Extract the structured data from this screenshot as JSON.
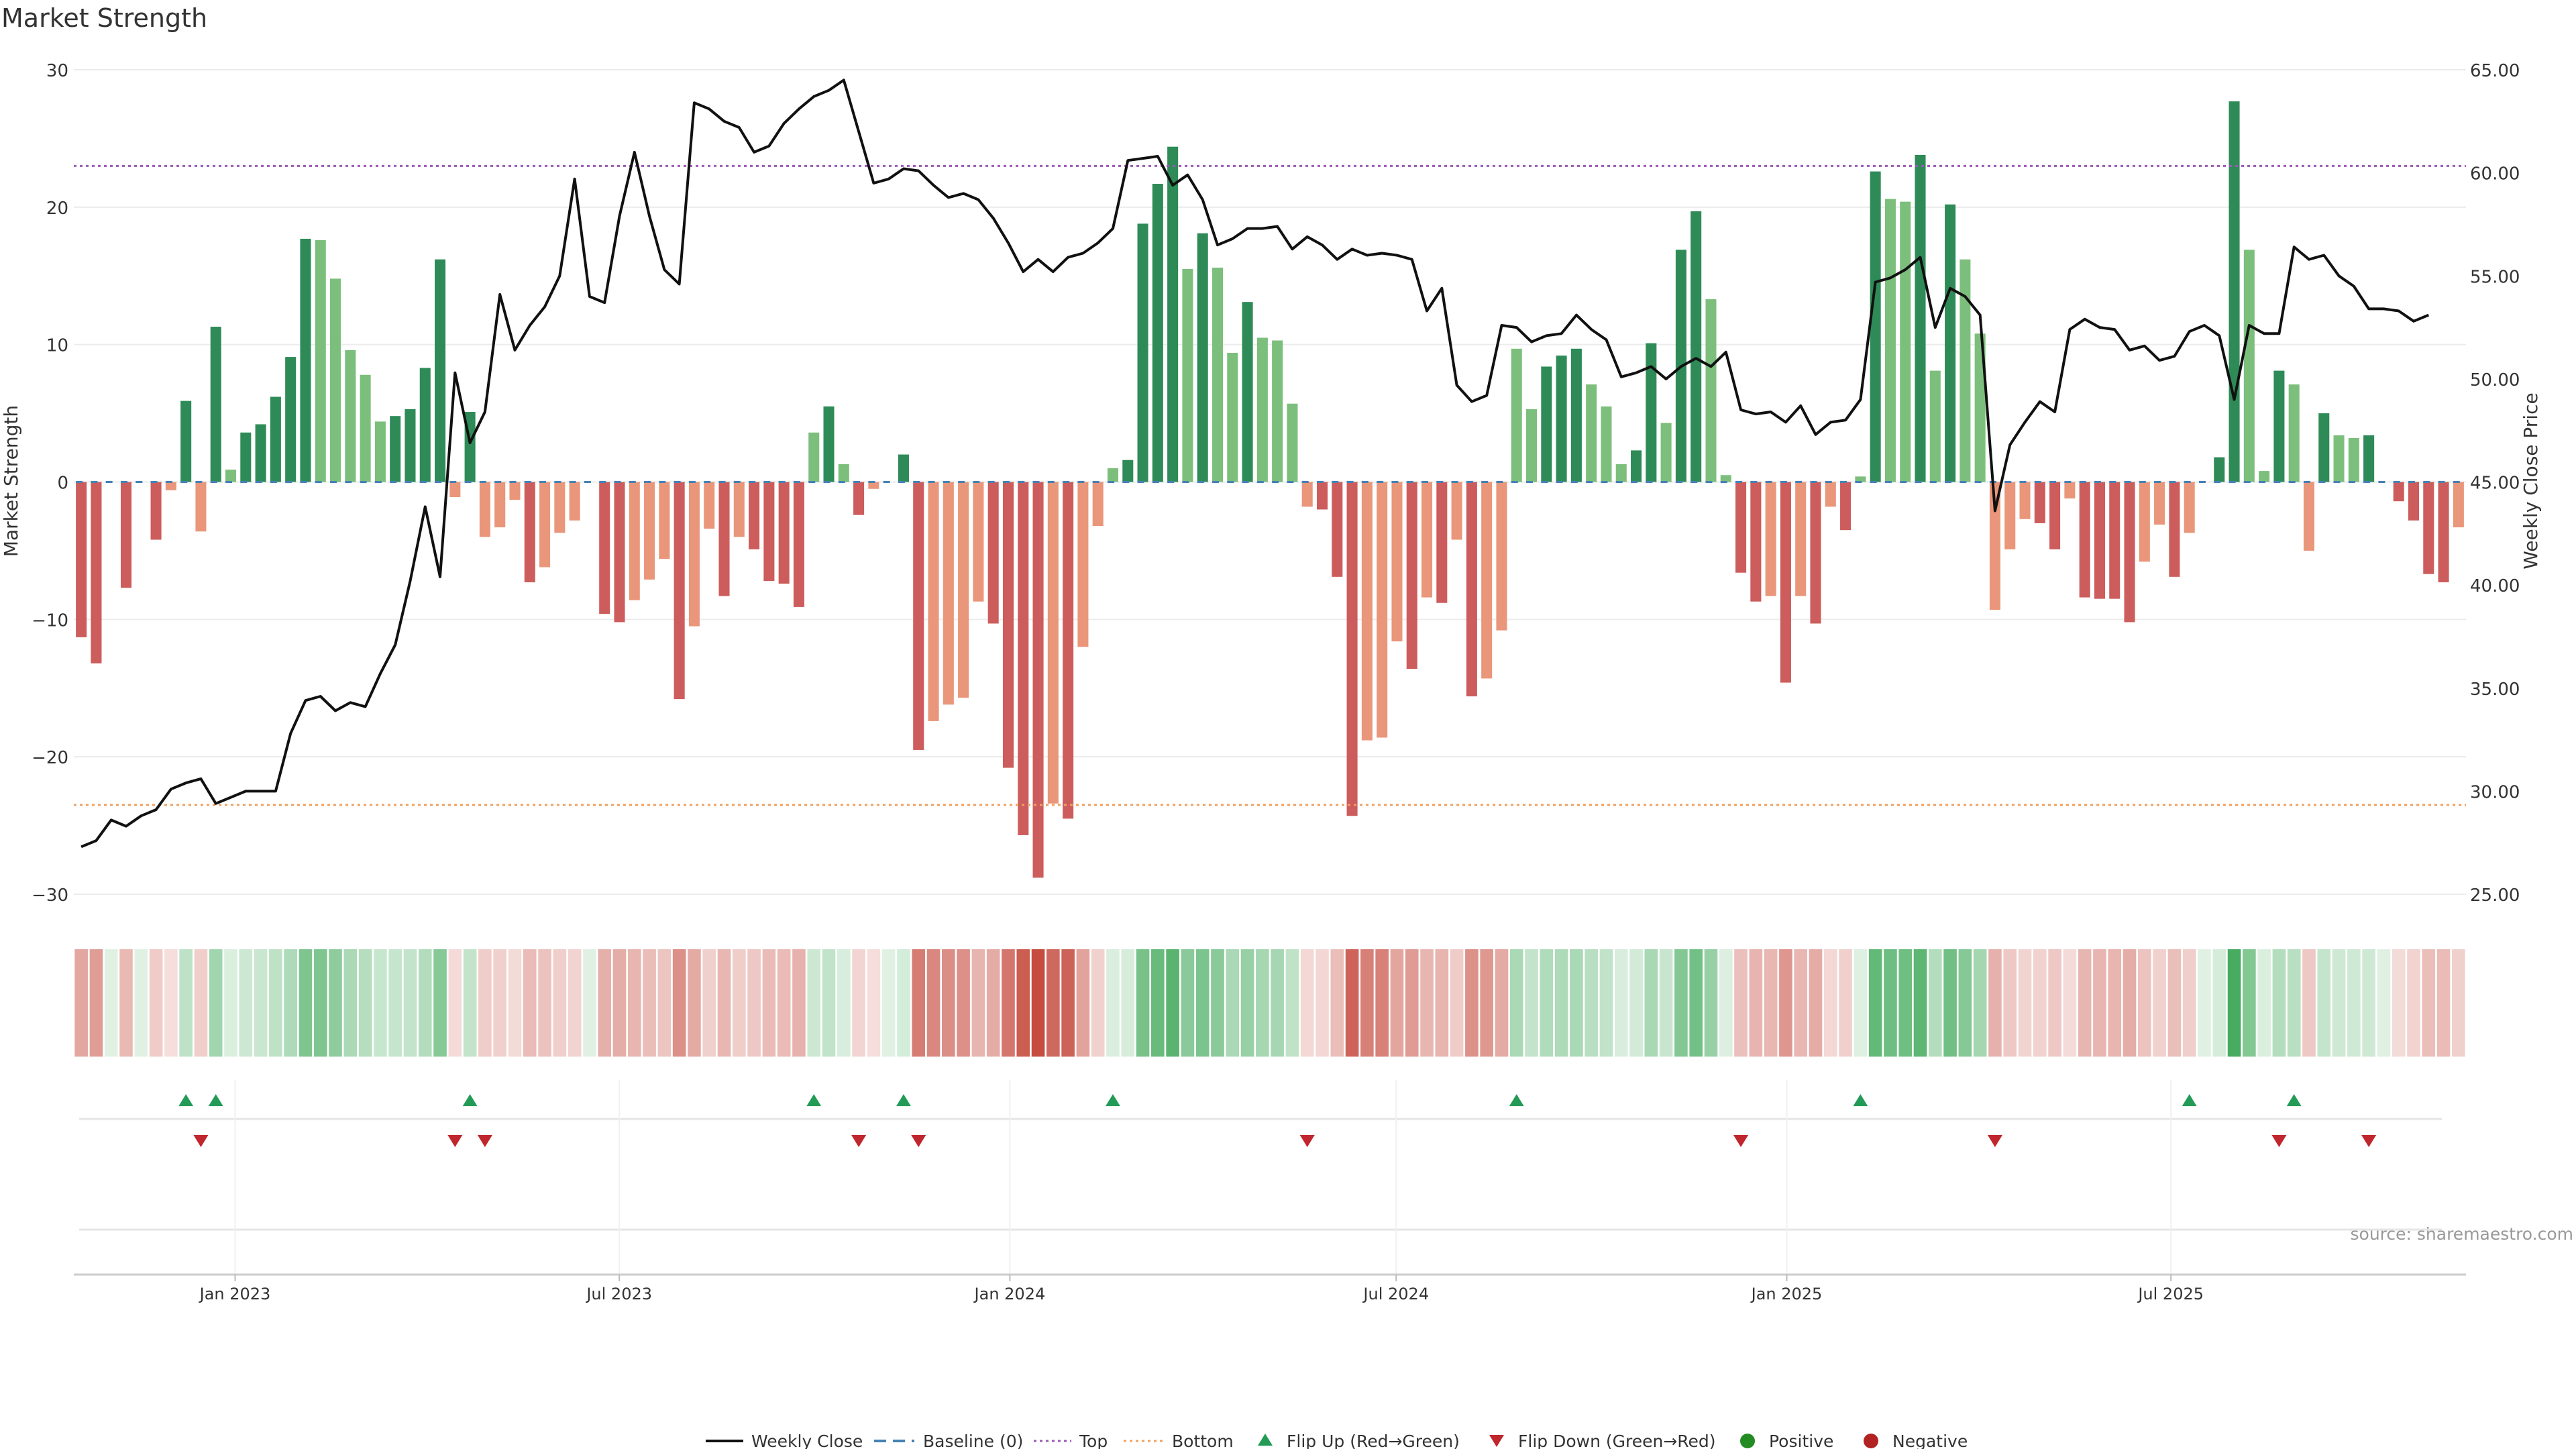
{
  "title": "Market Strength",
  "source": "source: sharemaestro.com",
  "colors": {
    "strong_green": "#2e8b57",
    "light_green": "#7cbf7c",
    "strong_red": "#cd5c5c",
    "light_red": "#e9967a",
    "line": "#111111",
    "baseline": "#4682b4",
    "top": "#9b59b6",
    "bottom": "#f0a060",
    "flip_up": "#239b56",
    "flip_down": "#c0262d",
    "positive": "#228b22",
    "negative": "#b22222"
  },
  "chart_data": {
    "type": "bar",
    "title": "Market Strength",
    "ylabel": "Market Strength",
    "y2label": "Weekly Close Price",
    "ylim": [
      -30,
      30
    ],
    "y2lim": [
      25,
      65
    ],
    "yticks": [
      -30,
      -20,
      -10,
      0,
      10,
      20,
      30
    ],
    "y2ticks": [
      "25.00",
      "30.00",
      "35.00",
      "40.00",
      "45.00",
      "50.00",
      "55.00",
      "60.00",
      "65.00"
    ],
    "xticks": [
      "Jan 2023",
      "Jul 2023",
      "Jan 2024",
      "Jul 2024",
      "Jan 2025",
      "Jul 2025"
    ],
    "x_start": "2022-10-17",
    "x_end": "2025-11-17",
    "x_tick_dates": [
      "2023-01-01",
      "2023-07-01",
      "2024-01-01",
      "2024-07-01",
      "2025-01-01",
      "2025-07-01"
    ],
    "top_level": 23,
    "bottom_level": -23.5,
    "strength": [
      -11.3,
      -13.2,
      0,
      -7.7,
      0,
      -4.2,
      -0.6,
      5.9,
      -3.6,
      11.3,
      0.9,
      3.6,
      4.2,
      6.2,
      9.1,
      17.7,
      17.6,
      14.8,
      9.6,
      7.8,
      4.4,
      4.8,
      5.3,
      8.3,
      16.2,
      -1.1,
      5.1,
      -4,
      -3.3,
      -1.3,
      -7.3,
      -6.2,
      -3.7,
      -2.8,
      0,
      -9.6,
      -10.2,
      -8.6,
      -7.1,
      -5.6,
      -15.8,
      -10.5,
      -3.4,
      -8.3,
      -4,
      -4.9,
      -7.2,
      -7.4,
      -9.1,
      3.6,
      5.5,
      1.3,
      -2.4,
      -0.5,
      0,
      2,
      -19.5,
      -17.4,
      -16.2,
      -15.7,
      -8.7,
      -10.3,
      -20.8,
      -25.7,
      -28.8,
      -23.4,
      -24.5,
      -12,
      -3.2,
      1,
      1.6,
      18.8,
      21.7,
      24.4,
      15.5,
      18.1,
      15.6,
      9.4,
      13.1,
      10.5,
      10.3,
      5.7,
      -1.8,
      -2,
      -6.9,
      -24.3,
      -18.8,
      -18.6,
      -11.6,
      -13.6,
      -8.4,
      -8.8,
      -4.2,
      -15.6,
      -14.3,
      -10.8,
      9.7,
      5.3,
      8.4,
      9.2,
      9.7,
      7.1,
      5.5,
      1.3,
      2.3,
      10.1,
      4.3,
      16.9,
      19.7,
      13.3,
      0.5,
      -6.6,
      -8.7,
      -8.3,
      -14.6,
      -8.3,
      -10.3,
      -1.8,
      -3.5,
      0.4,
      22.6,
      20.6,
      20.4,
      23.8,
      8.1,
      20.2,
      16.2,
      10.8,
      -9.3,
      -4.9,
      -2.7,
      -3,
      -4.9,
      -1.2,
      -8.4,
      -8.5,
      -8.5,
      -10.2,
      -5.8,
      -3.1,
      -6.9,
      -3.7,
      0,
      1.8,
      27.7,
      16.9,
      0.8,
      8.1,
      7.1,
      -5,
      5,
      3.4,
      3.2,
      3.4,
      0,
      -1.4,
      -2.8,
      -6.7,
      -7.3,
      -3.3
    ],
    "close": [
      27.3,
      27.6,
      28.6,
      28.3,
      28.8,
      29.1,
      30.1,
      30.4,
      30.6,
      29.4,
      29.7,
      30,
      30,
      30,
      32.8,
      34.4,
      34.6,
      33.9,
      34.3,
      34.1,
      35.7,
      37.1,
      40.2,
      43.8,
      40.4,
      50.3,
      46.9,
      48.4,
      54.1,
      51.4,
      52.6,
      53.5,
      55,
      59.7,
      54,
      53.7,
      57.9,
      61,
      57.9,
      55.3,
      54.6,
      63.4,
      63.1,
      62.5,
      62.2,
      61,
      61.3,
      62.4,
      63.1,
      63.7,
      64,
      64.5,
      62,
      59.5,
      59.7,
      60.2,
      60.1,
      59.4,
      58.8,
      59,
      58.7,
      57.8,
      56.6,
      55.2,
      55.8,
      55.2,
      55.9,
      56.1,
      56.6,
      57.3,
      60.6,
      60.7,
      60.8,
      59.4,
      59.9,
      58.7,
      56.5,
      56.8,
      57.3,
      57.3,
      57.4,
      56.3,
      56.9,
      56.5,
      55.8,
      56.3,
      56,
      56.1,
      56,
      55.8,
      53.3,
      54.4,
      49.7,
      48.9,
      49.2,
      52.6,
      52.5,
      51.8,
      52.1,
      52.2,
      53.1,
      52.4,
      51.9,
      50.1,
      50.3,
      50.6,
      50,
      50.6,
      51,
      50.6,
      51.3,
      48.5,
      48.3,
      48.4,
      47.9,
      48.7,
      47.3,
      47.9,
      48,
      49,
      54.7,
      54.9,
      55.3,
      55.9,
      52.5,
      54.4,
      54,
      53.1,
      43.6,
      46.8,
      47.9,
      48.9,
      48.4,
      52.4,
      52.9,
      52.5,
      52.4,
      51.4,
      51.6,
      50.9,
      51.1,
      52.3,
      52.6,
      52.1,
      49,
      52.6,
      52.2,
      52.2,
      56.4,
      55.8,
      56,
      55,
      54.5,
      53.4,
      53.4,
      53.3,
      52.8,
      53.1
    ],
    "flip_up_x": [
      7,
      9,
      26,
      49,
      55,
      69,
      96,
      119,
      141,
      148
    ],
    "flip_down_x": [
      8,
      25,
      27,
      52,
      56,
      82,
      111,
      128,
      147,
      153
    ],
    "legend": [
      "Weekly Close",
      "Baseline (0)",
      "Top",
      "Bottom",
      "Flip Up (Red→Green)",
      "Flip Down (Green→Red)",
      "Positive",
      "Negative"
    ],
    "legend_position": "bottom-center"
  }
}
